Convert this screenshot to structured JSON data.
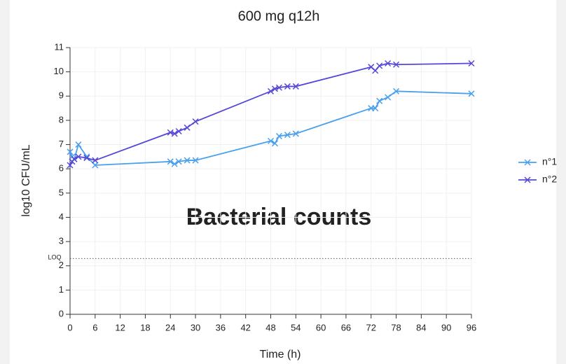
{
  "chart_data": {
    "type": "line",
    "title": "600 mg q12h",
    "annotation": "Bacterial counts",
    "x_label": "Time (h)",
    "y_label": "log10 CFU/mL",
    "xlim": [
      0,
      96
    ],
    "xticks": [
      0,
      6,
      12,
      18,
      24,
      30,
      36,
      42,
      48,
      54,
      60,
      66,
      72,
      78,
      84,
      90,
      96
    ],
    "ylim": [
      0,
      11
    ],
    "yticks": [
      0,
      1,
      2,
      3,
      4,
      5,
      6,
      7,
      8,
      9,
      10,
      11
    ],
    "grid": true,
    "legend": "right",
    "loq": {
      "value": 2.3,
      "label": "LOQ"
    },
    "x": [
      0,
      0.5,
      1,
      2,
      4,
      6,
      24,
      25,
      26,
      28,
      30,
      48,
      49,
      50,
      52,
      54,
      72,
      73,
      74,
      76,
      78,
      96
    ],
    "series": [
      {
        "name": "n°1",
        "color": "#4aa0ec",
        "values": [
          6.7,
          6.5,
          6.4,
          7.0,
          6.5,
          6.15,
          6.3,
          6.2,
          6.3,
          6.35,
          6.35,
          7.15,
          7.05,
          7.35,
          7.4,
          7.45,
          8.5,
          8.5,
          8.8,
          8.95,
          9.2,
          9.1
        ]
      },
      {
        "name": "n°2",
        "color": "#5548d8",
        "values": [
          6.15,
          6.3,
          6.4,
          6.5,
          6.45,
          6.35,
          7.5,
          7.45,
          7.55,
          7.7,
          7.95,
          9.2,
          9.3,
          9.35,
          9.4,
          9.4,
          10.2,
          10.05,
          10.25,
          10.35,
          10.3,
          10.35
        ]
      }
    ]
  }
}
